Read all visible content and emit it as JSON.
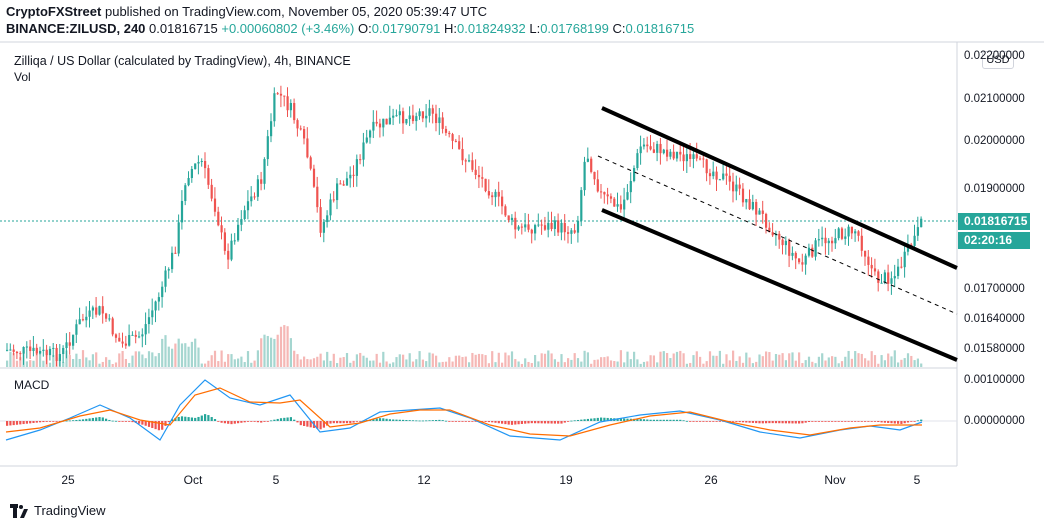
{
  "header": {
    "publisher": "CryptoFXStreet",
    "published_text": "published on TradingView.com, November 05, 2020 05:39:47 UTC",
    "symbol_line": "BINANCE:ZILUSD, 240",
    "last": "0.01816715",
    "change": "+0.00060802 (+3.46%)",
    "o_label": "O:",
    "o_value": "0.01790791",
    "h_label": "H:",
    "h_value": "0.01824932",
    "l_label": "L:",
    "l_value": "0.01768199",
    "c_label": "C:",
    "c_value": "0.01816715"
  },
  "pane": {
    "title": "Zilliqa / US Dollar (calculated by TradingView), 4h, BINANCE",
    "vol_label": "Vol",
    "macd_label": "MACD",
    "currency": "USD",
    "last_price_tag": "0.01816715",
    "countdown_tag": "02:20:16"
  },
  "price_axis": [
    "0.02200000",
    "0.02100000",
    "0.02000000",
    "0.01900000",
    "0.01700000",
    "0.01640000",
    "0.01580000"
  ],
  "macd_axis": [
    "0.00100000",
    "0.00000000"
  ],
  "time_axis": [
    "25",
    "Oct",
    "5",
    "12",
    "19",
    "26",
    "Nov",
    "5"
  ],
  "brand": "TradingView",
  "colors": {
    "up": "#26a69a",
    "down": "#ef5350",
    "macd": "#2196f3",
    "signal": "#ff6d00",
    "channel": "#000000"
  }
}
